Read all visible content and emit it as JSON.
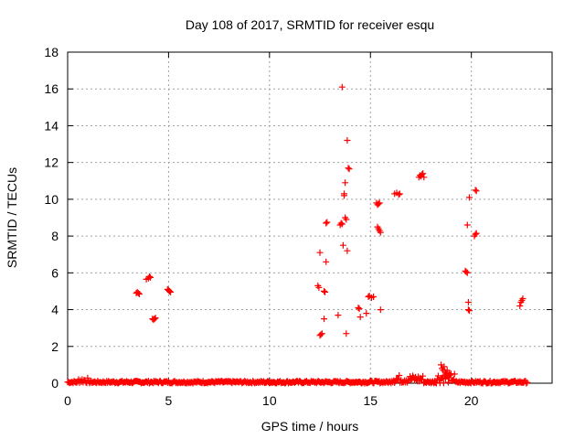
{
  "chart_data": {
    "type": "scatter",
    "title": "Day 108 of 2017, SRMTID for receiver esqu",
    "xlabel": "GPS time / hours",
    "ylabel": "SRMTID / TECUs",
    "xlim": [
      0,
      24
    ],
    "ylim": [
      0,
      18
    ],
    "x_ticks": [
      0,
      5,
      10,
      15,
      20
    ],
    "y_ticks": [
      0,
      2,
      4,
      6,
      8,
      10,
      12,
      14,
      16,
      18
    ],
    "grid": true,
    "marker": "+",
    "color": "#ff0000",
    "points": [
      [
        3.4,
        4.9
      ],
      [
        3.5,
        4.9
      ],
      [
        3.45,
        4.95
      ],
      [
        3.55,
        4.85
      ],
      [
        3.9,
        5.65
      ],
      [
        4.0,
        5.7
      ],
      [
        4.05,
        5.8
      ],
      [
        4.1,
        5.75
      ],
      [
        4.2,
        3.5
      ],
      [
        4.3,
        3.5
      ],
      [
        4.35,
        3.55
      ],
      [
        4.25,
        3.45
      ],
      [
        4.95,
        5.1
      ],
      [
        5.0,
        5.05
      ],
      [
        5.05,
        5.0
      ],
      [
        5.1,
        4.95
      ],
      [
        12.4,
        5.3
      ],
      [
        12.45,
        5.2
      ],
      [
        12.5,
        7.1
      ],
      [
        12.5,
        2.6
      ],
      [
        12.55,
        2.65
      ],
      [
        12.6,
        2.7
      ],
      [
        12.7,
        5.0
      ],
      [
        12.75,
        4.95
      ],
      [
        12.7,
        3.5
      ],
      [
        12.8,
        6.6
      ],
      [
        12.8,
        8.7
      ],
      [
        12.85,
        8.75
      ],
      [
        13.4,
        3.7
      ],
      [
        13.5,
        8.6
      ],
      [
        13.55,
        8.7
      ],
      [
        13.6,
        16.1
      ],
      [
        13.6,
        8.65
      ],
      [
        13.65,
        7.5
      ],
      [
        13.7,
        10.2
      ],
      [
        13.7,
        10.3
      ],
      [
        13.75,
        10.9
      ],
      [
        13.75,
        9.0
      ],
      [
        13.8,
        8.9
      ],
      [
        13.8,
        2.7
      ],
      [
        13.85,
        13.2
      ],
      [
        13.85,
        7.2
      ],
      [
        13.9,
        11.7
      ],
      [
        13.95,
        11.65
      ],
      [
        14.4,
        4.1
      ],
      [
        14.45,
        4.05
      ],
      [
        14.5,
        3.6
      ],
      [
        14.8,
        3.8
      ],
      [
        14.9,
        4.7
      ],
      [
        14.95,
        4.75
      ],
      [
        15.05,
        4.65
      ],
      [
        15.15,
        4.7
      ],
      [
        15.3,
        9.8
      ],
      [
        15.35,
        9.7
      ],
      [
        15.4,
        9.75
      ],
      [
        15.45,
        9.8
      ],
      [
        15.35,
        8.5
      ],
      [
        15.4,
        8.4
      ],
      [
        15.45,
        8.3
      ],
      [
        15.5,
        8.2
      ],
      [
        15.5,
        4.0
      ],
      [
        16.2,
        10.3
      ],
      [
        16.3,
        10.35
      ],
      [
        16.4,
        10.25
      ],
      [
        16.45,
        10.3
      ],
      [
        17.4,
        11.2
      ],
      [
        17.45,
        11.3
      ],
      [
        17.5,
        11.25
      ],
      [
        17.55,
        11.35
      ],
      [
        17.6,
        11.4
      ],
      [
        17.65,
        11.2
      ],
      [
        19.7,
        6.1
      ],
      [
        19.75,
        6.05
      ],
      [
        19.8,
        6.0
      ],
      [
        19.8,
        8.6
      ],
      [
        19.85,
        4.4
      ],
      [
        19.85,
        4.0
      ],
      [
        19.9,
        3.95
      ],
      [
        19.9,
        10.1
      ],
      [
        20.2,
        10.5
      ],
      [
        20.25,
        10.45
      ],
      [
        20.15,
        8.0
      ],
      [
        20.2,
        8.1
      ],
      [
        20.25,
        8.15
      ],
      [
        22.4,
        4.2
      ],
      [
        22.45,
        4.4
      ],
      [
        22.5,
        4.5
      ],
      [
        22.55,
        4.6
      ],
      [
        18.5,
        1.0
      ],
      [
        18.55,
        0.8
      ],
      [
        18.6,
        0.7
      ],
      [
        18.65,
        0.9
      ],
      [
        18.7,
        0.6
      ],
      [
        18.75,
        0.5
      ],
      [
        18.8,
        0.7
      ],
      [
        18.85,
        0.4
      ],
      [
        18.9,
        0.3
      ]
    ],
    "baseline_band": {
      "description_values": "dense points near zero across 0-22.8 h",
      "x_range": [
        0,
        22.8
      ],
      "typical_max": 0.35
    }
  }
}
